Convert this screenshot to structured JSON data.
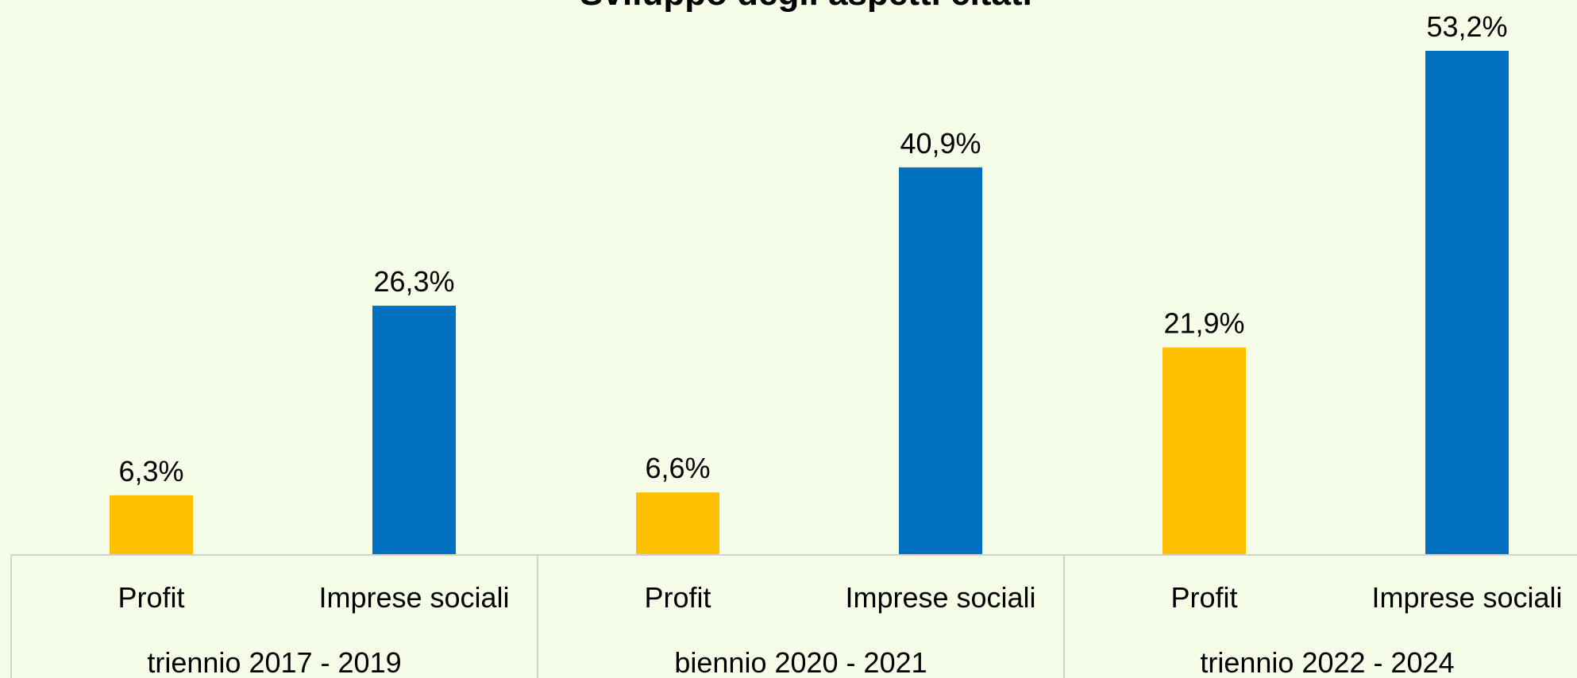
{
  "chart_data": {
    "type": "bar",
    "title": "Sviluppo degli aspetti citati",
    "groups": [
      {
        "label": "triennio 2017 - 2019",
        "bars": [
          {
            "category": "Profit",
            "value": 6.3,
            "label": "6,3%"
          },
          {
            "category": "Imprese sociali",
            "value": 26.3,
            "label": "26,3%"
          }
        ]
      },
      {
        "label": "biennio 2020 - 2021",
        "bars": [
          {
            "category": "Profit",
            "value": 6.6,
            "label": "6,6%"
          },
          {
            "category": "Imprese sociali",
            "value": 40.9,
            "label": "40,9%"
          }
        ]
      },
      {
        "label": "triennio 2022 - 2024",
        "bars": [
          {
            "category": "Profit",
            "value": 21.9,
            "label": "21,9%"
          },
          {
            "category": "Imprese sociali",
            "value": 53.2,
            "label": "53,2%"
          }
        ]
      }
    ],
    "colors": {
      "Profit": "#ffc000",
      "Imprese sociali": "#0070c0"
    },
    "ylim": [
      0,
      53.2
    ],
    "grid": false,
    "legend": "none"
  }
}
